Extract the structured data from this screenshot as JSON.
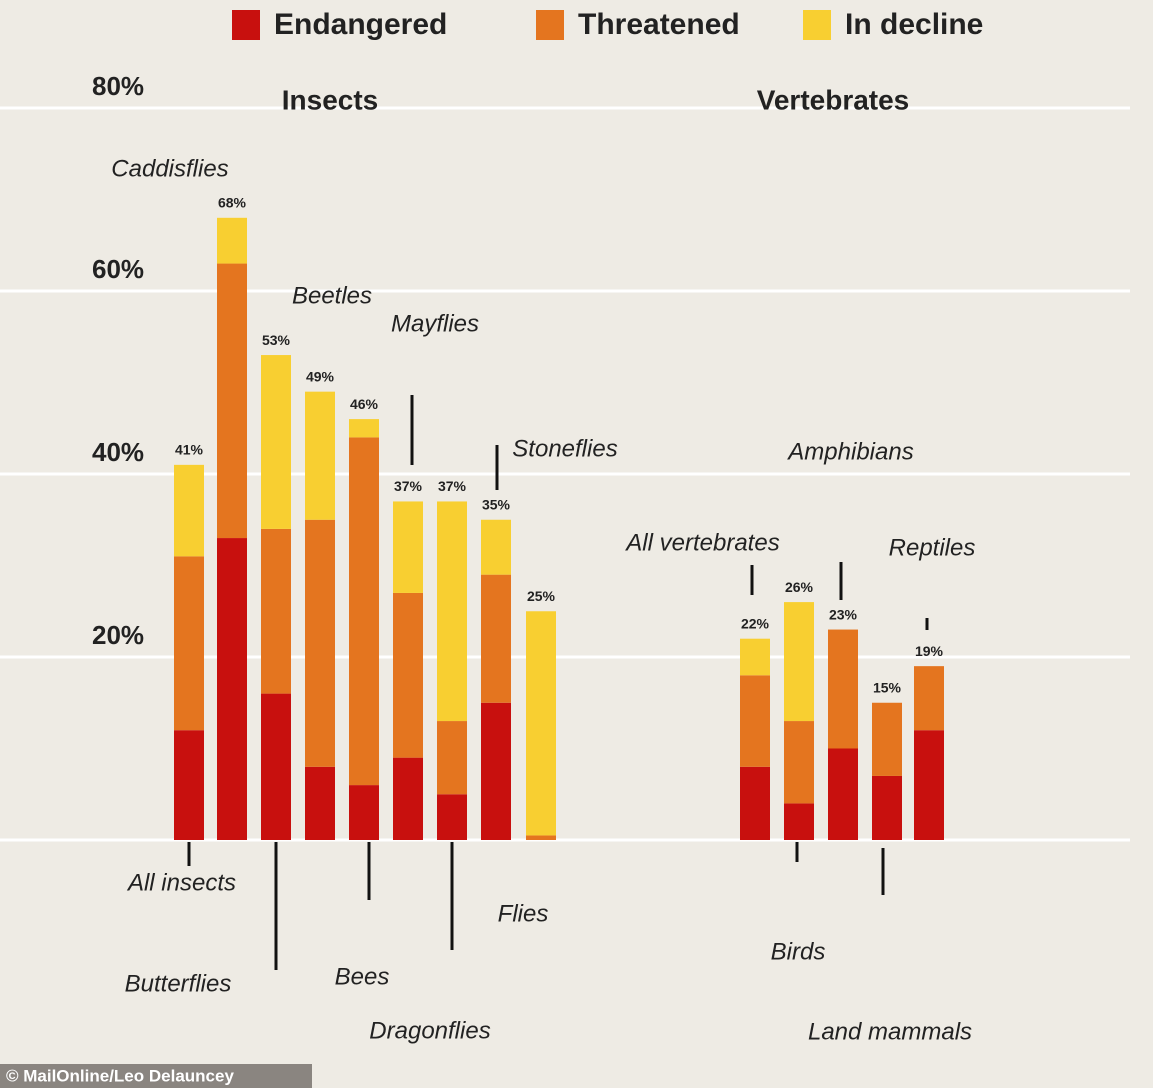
{
  "chart_data": {
    "type": "stacked_bar",
    "groups": [
      "Insects",
      "Vertebrates"
    ],
    "categories": [
      "All insects",
      "Caddisflies",
      "Butterflies",
      "Beetles",
      "Bees",
      "Mayflies",
      "Dragonflies",
      "Stoneflies",
      "Flies",
      "All vertebrates",
      "Birds",
      "Amphibians",
      "Land mammals",
      "Reptiles"
    ],
    "series": [
      {
        "name": "Endangered",
        "color": "#c8100e",
        "values": [
          12,
          33,
          16,
          8,
          6,
          9,
          5,
          15,
          0,
          8,
          4,
          10,
          7,
          12
        ]
      },
      {
        "name": "Threatened",
        "color": "#e4751f",
        "values": [
          19,
          30,
          18,
          27,
          38,
          18,
          8,
          14,
          0.5,
          10,
          9,
          13,
          8,
          7
        ]
      },
      {
        "name": "In decline",
        "color": "#f8cf31",
        "values": [
          10,
          5,
          19,
          14,
          2,
          10,
          24,
          6,
          24.5,
          4,
          13,
          0,
          0,
          0
        ]
      }
    ],
    "totals": [
      41,
      68,
      53,
      49,
      46,
      37,
      37,
      35,
      25,
      22,
      26,
      23,
      15,
      19
    ],
    "total_labels": [
      "41%",
      "68%",
      "53%",
      "49%",
      "46%",
      "37%",
      "37%",
      "35%",
      "25%",
      "22%",
      "26%",
      "23%",
      "15%",
      "19%"
    ],
    "ylim": [
      0,
      80
    ],
    "yticks": [
      {
        "value": 20,
        "label": "20%"
      },
      {
        "value": 40,
        "label": "40%"
      },
      {
        "value": 60,
        "label": "60%"
      },
      {
        "value": 80,
        "label": "80%"
      }
    ],
    "grid": true,
    "legend": "top",
    "credit": "© MailOnline/Leo Delauncey"
  }
}
